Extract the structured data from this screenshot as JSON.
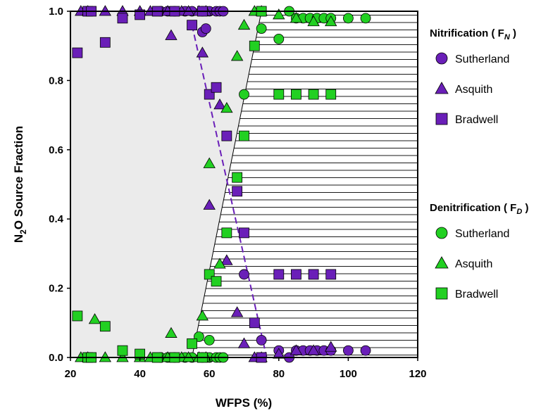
{
  "chart_data": {
    "type": "scatter",
    "xlabel": "WFPS (%)",
    "ylabel_parts": {
      "pre": "N",
      "sub": "2",
      "post": "O Source Fraction"
    },
    "xlim": [
      20,
      120
    ],
    "ylim": [
      0,
      1
    ],
    "xticks": [
      20,
      40,
      60,
      80,
      100,
      120
    ],
    "yticks": [
      0.0,
      0.2,
      0.4,
      0.6,
      0.8,
      1.0
    ],
    "colors": {
      "nitrification": "#6a1fb8",
      "denitrification": "#22d022",
      "shade": "#ebebeb",
      "hatch": "#000000"
    },
    "legend": {
      "placement": "right",
      "groups": [
        {
          "title_pre": "Nitrification ( F",
          "title_sub": "N",
          "title_post": " )",
          "process": "nitrification",
          "items": [
            {
              "label": "Sutherland",
              "marker": "circle"
            },
            {
              "label": "Asquith",
              "marker": "triangle"
            },
            {
              "label": "Bradwell",
              "marker": "square"
            }
          ]
        },
        {
          "title_pre": "Denitrification ( F",
          "title_sub": "D",
          "title_post": " )",
          "process": "denitrification",
          "items": [
            {
              "label": "Sutherland",
              "marker": "circle"
            },
            {
              "label": "Asquith",
              "marker": "triangle"
            },
            {
              "label": "Bradwell",
              "marker": "square"
            }
          ]
        }
      ]
    },
    "regions": {
      "shaded_polygon": [
        [
          20,
          0
        ],
        [
          55,
          0
        ],
        [
          75,
          1
        ],
        [
          20,
          1
        ]
      ],
      "hatched_polygon": [
        [
          75,
          1
        ],
        [
          120,
          1
        ],
        [
          120,
          0
        ],
        [
          55,
          0
        ]
      ],
      "dashed_line": [
        [
          55,
          0.96
        ],
        [
          76.5,
          0
        ]
      ]
    },
    "series": [
      {
        "name": "Sutherland",
        "process": "nitrification",
        "marker": "circle",
        "points": [
          [
            46,
            1.0
          ],
          [
            48,
            1.0
          ],
          [
            50,
            1.0
          ],
          [
            53,
            1.0
          ],
          [
            55,
            1.0
          ],
          [
            58,
            1.0
          ],
          [
            60,
            1.0
          ],
          [
            62,
            1.0
          ],
          [
            63,
            1.0
          ],
          [
            64,
            1.0
          ],
          [
            58,
            0.94
          ],
          [
            59,
            0.95
          ],
          [
            70,
            0.24
          ],
          [
            75,
            0.05
          ],
          [
            80,
            0.02
          ],
          [
            83,
            0.0
          ],
          [
            85,
            0.02
          ],
          [
            87,
            0.02
          ],
          [
            89,
            0.02
          ],
          [
            91,
            0.02
          ],
          [
            93,
            0.02
          ],
          [
            95,
            0.02
          ],
          [
            100,
            0.02
          ],
          [
            105,
            0.02
          ]
        ]
      },
      {
        "name": "Asquith",
        "process": "nitrification",
        "marker": "triangle",
        "points": [
          [
            23,
            1.0
          ],
          [
            25,
            1.0
          ],
          [
            30,
            1.0
          ],
          [
            35,
            1.0
          ],
          [
            40,
            1.0
          ],
          [
            43,
            1.0
          ],
          [
            48,
            1.0
          ],
          [
            52,
            1.0
          ],
          [
            54,
            1.0
          ],
          [
            57,
            1.0
          ],
          [
            59,
            1.0
          ],
          [
            49,
            0.93
          ],
          [
            58,
            0.88
          ],
          [
            60,
            0.44
          ],
          [
            63,
            0.73
          ],
          [
            65,
            0.28
          ],
          [
            68,
            0.13
          ],
          [
            70,
            0.04
          ],
          [
            73,
            0.0
          ],
          [
            75,
            0.0
          ],
          [
            80,
            0.01
          ],
          [
            85,
            0.02
          ],
          [
            90,
            0.02
          ],
          [
            95,
            0.03
          ]
        ]
      },
      {
        "name": "Bradwell",
        "process": "nitrification",
        "marker": "square",
        "points": [
          [
            22,
            0.88
          ],
          [
            25,
            1.0
          ],
          [
            26,
            1.0
          ],
          [
            30,
            0.91
          ],
          [
            35,
            0.98
          ],
          [
            40,
            0.99
          ],
          [
            45,
            1.0
          ],
          [
            50,
            1.0
          ],
          [
            55,
            0.96
          ],
          [
            58,
            1.0
          ],
          [
            60,
            0.76
          ],
          [
            62,
            0.78
          ],
          [
            65,
            0.64
          ],
          [
            68,
            0.48
          ],
          [
            70,
            0.36
          ],
          [
            73,
            0.1
          ],
          [
            75,
            0.0
          ],
          [
            80,
            0.24
          ],
          [
            85,
            0.24
          ],
          [
            90,
            0.24
          ],
          [
            95,
            0.24
          ]
        ]
      },
      {
        "name": "Sutherland",
        "process": "denitrification",
        "marker": "circle",
        "points": [
          [
            46,
            0.0
          ],
          [
            48,
            0.0
          ],
          [
            50,
            0.0
          ],
          [
            53,
            0.0
          ],
          [
            55,
            0.0
          ],
          [
            58,
            0.0
          ],
          [
            60,
            0.0
          ],
          [
            62,
            0.0
          ],
          [
            63,
            0.0
          ],
          [
            64,
            0.0
          ],
          [
            57,
            0.06
          ],
          [
            60,
            0.05
          ],
          [
            70,
            0.76
          ],
          [
            75,
            0.95
          ],
          [
            80,
            0.92
          ],
          [
            83,
            1.0
          ],
          [
            85,
            0.98
          ],
          [
            87,
            0.98
          ],
          [
            89,
            0.98
          ],
          [
            91,
            0.98
          ],
          [
            93,
            0.98
          ],
          [
            95,
            0.98
          ],
          [
            100,
            0.98
          ],
          [
            105,
            0.98
          ]
        ]
      },
      {
        "name": "Asquith",
        "process": "denitrification",
        "marker": "triangle",
        "points": [
          [
            23,
            0.0
          ],
          [
            25,
            0.0
          ],
          [
            30,
            0.0
          ],
          [
            35,
            0.0
          ],
          [
            40,
            0.0
          ],
          [
            43,
            0.0
          ],
          [
            48,
            0.0
          ],
          [
            52,
            0.0
          ],
          [
            54,
            0.0
          ],
          [
            57,
            0.0
          ],
          [
            59,
            0.0
          ],
          [
            27,
            0.11
          ],
          [
            49,
            0.07
          ],
          [
            58,
            0.12
          ],
          [
            60,
            0.56
          ],
          [
            63,
            0.27
          ],
          [
            65,
            0.72
          ],
          [
            68,
            0.87
          ],
          [
            70,
            0.96
          ],
          [
            73,
            1.0
          ],
          [
            75,
            1.0
          ],
          [
            80,
            0.99
          ],
          [
            85,
            0.98
          ],
          [
            90,
            0.97
          ],
          [
            95,
            0.97
          ]
        ]
      },
      {
        "name": "Bradwell",
        "process": "denitrification",
        "marker": "square",
        "points": [
          [
            22,
            0.12
          ],
          [
            25,
            0.0
          ],
          [
            26,
            0.0
          ],
          [
            30,
            0.09
          ],
          [
            35,
            0.02
          ],
          [
            40,
            0.01
          ],
          [
            45,
            0.0
          ],
          [
            50,
            0.0
          ],
          [
            55,
            0.04
          ],
          [
            58,
            0.0
          ],
          [
            60,
            0.24
          ],
          [
            62,
            0.22
          ],
          [
            65,
            0.36
          ],
          [
            68,
            0.52
          ],
          [
            70,
            0.64
          ],
          [
            73,
            0.9
          ],
          [
            75,
            1.0
          ],
          [
            80,
            0.76
          ],
          [
            85,
            0.76
          ],
          [
            90,
            0.76
          ],
          [
            95,
            0.76
          ]
        ]
      }
    ]
  }
}
